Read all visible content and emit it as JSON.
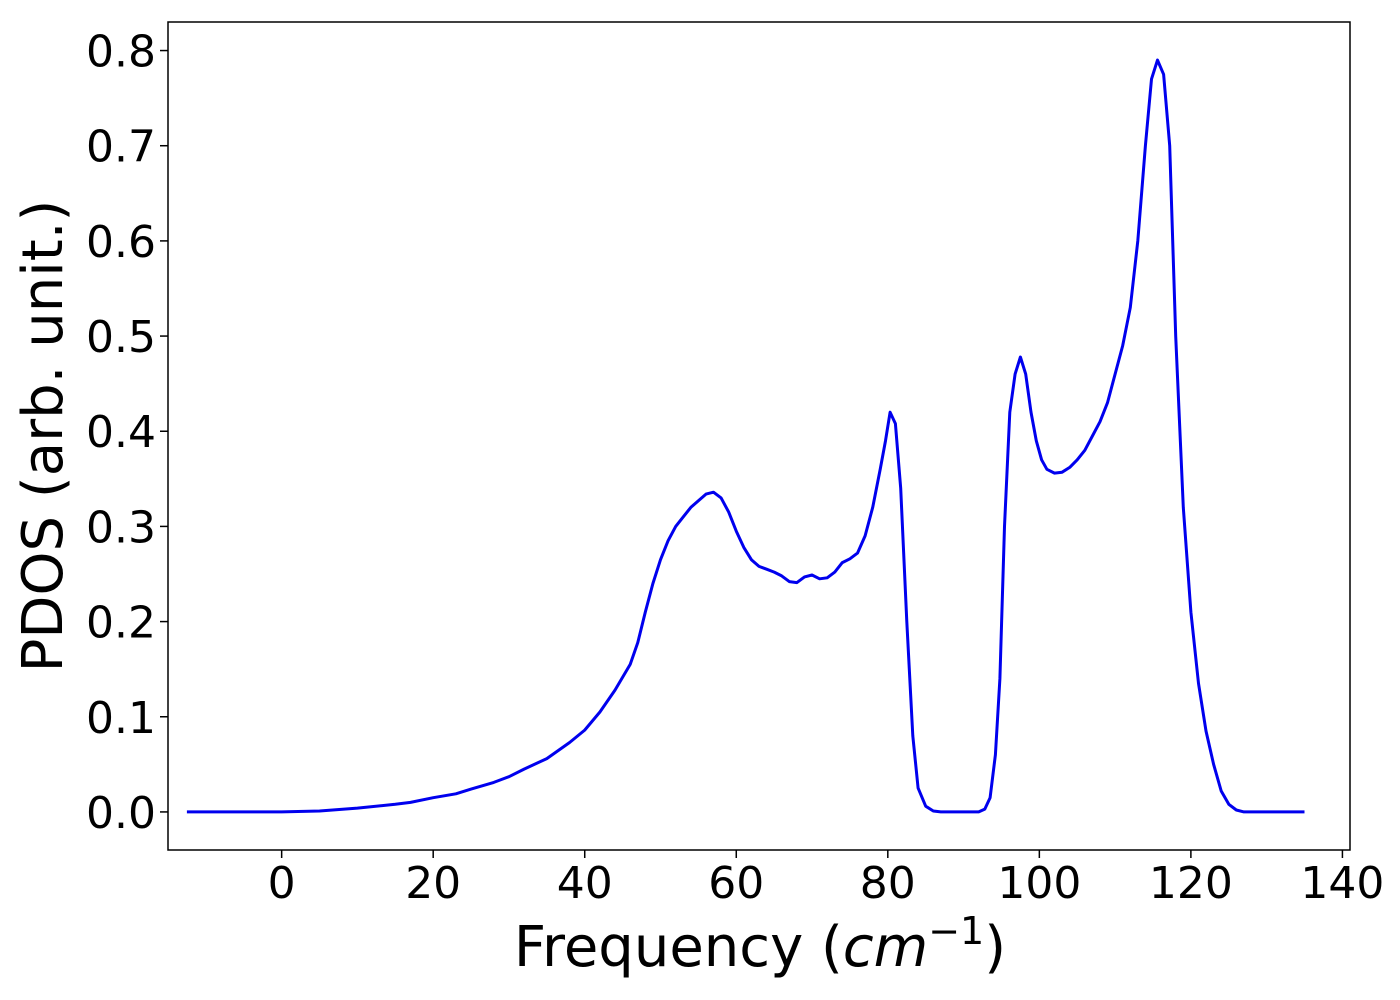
{
  "chart_data": {
    "type": "line",
    "xlabel_main": "Frequency (",
    "xlabel_unit": "cm",
    "xlabel_exp": "−1",
    "xlabel_close": ")",
    "ylabel": "PDOS (arb. unit.)",
    "xlim": [
      -15,
      141
    ],
    "ylim": [
      -0.04,
      0.83
    ],
    "xticks": [
      0,
      20,
      40,
      60,
      80,
      100,
      120,
      140
    ],
    "yticks": [
      0.0,
      0.1,
      0.2,
      0.3,
      0.4,
      0.5,
      0.6,
      0.7,
      0.8
    ],
    "ytick_labels": [
      "0.0",
      "0.1",
      "0.2",
      "0.3",
      "0.4",
      "0.5",
      "0.6",
      "0.7",
      "0.8"
    ],
    "xtick_labels": [
      "0",
      "20",
      "40",
      "60",
      "80",
      "100",
      "120",
      "140"
    ],
    "grid": false,
    "line_color": "#0000ee",
    "series": [
      {
        "x": [
          -12.5,
          -5,
          0,
          5,
          10,
          15,
          17,
          20,
          23,
          25,
          28,
          30,
          32,
          35,
          38,
          40,
          42,
          44,
          46,
          47,
          48,
          49,
          50,
          51,
          52,
          53,
          54,
          55,
          56,
          57,
          58,
          59,
          60,
          61,
          62,
          63,
          64,
          65,
          66,
          67,
          68,
          69,
          70,
          71,
          72,
          73,
          74,
          75,
          76,
          77,
          78,
          79,
          79.7,
          80.3,
          81,
          81.7,
          82.5,
          83.3,
          84,
          85,
          86,
          87,
          88,
          89,
          90,
          91,
          92,
          92.8,
          93.5,
          94.2,
          94.8,
          95.4,
          96.1,
          96.8,
          97.5,
          98.2,
          98.9,
          99.6,
          100.3,
          101,
          102,
          103,
          104,
          105,
          106,
          107,
          108,
          109,
          110,
          111,
          112,
          113,
          114,
          114.8,
          115.6,
          116.4,
          117.2,
          118,
          119,
          120,
          121,
          122,
          123,
          124,
          125,
          126,
          127,
          130,
          135
        ],
        "y": [
          0.0,
          0.0,
          0.0,
          0.001,
          0.004,
          0.008,
          0.01,
          0.015,
          0.019,
          0.024,
          0.031,
          0.037,
          0.045,
          0.056,
          0.073,
          0.086,
          0.105,
          0.128,
          0.155,
          0.178,
          0.21,
          0.24,
          0.265,
          0.285,
          0.3,
          0.31,
          0.32,
          0.327,
          0.334,
          0.336,
          0.33,
          0.315,
          0.295,
          0.278,
          0.265,
          0.258,
          0.255,
          0.252,
          0.248,
          0.242,
          0.241,
          0.247,
          0.249,
          0.245,
          0.246,
          0.252,
          0.262,
          0.266,
          0.272,
          0.29,
          0.32,
          0.36,
          0.39,
          0.42,
          0.408,
          0.34,
          0.2,
          0.08,
          0.025,
          0.006,
          0.001,
          0.0,
          0.0,
          0.0,
          0.0,
          0.0,
          0.0,
          0.003,
          0.015,
          0.06,
          0.14,
          0.3,
          0.42,
          0.46,
          0.478,
          0.46,
          0.42,
          0.39,
          0.37,
          0.36,
          0.356,
          0.357,
          0.362,
          0.37,
          0.38,
          0.395,
          0.41,
          0.43,
          0.46,
          0.49,
          0.53,
          0.6,
          0.7,
          0.77,
          0.79,
          0.775,
          0.7,
          0.5,
          0.32,
          0.21,
          0.135,
          0.085,
          0.05,
          0.022,
          0.008,
          0.002,
          0.0,
          0.0,
          0.0
        ]
      }
    ]
  }
}
